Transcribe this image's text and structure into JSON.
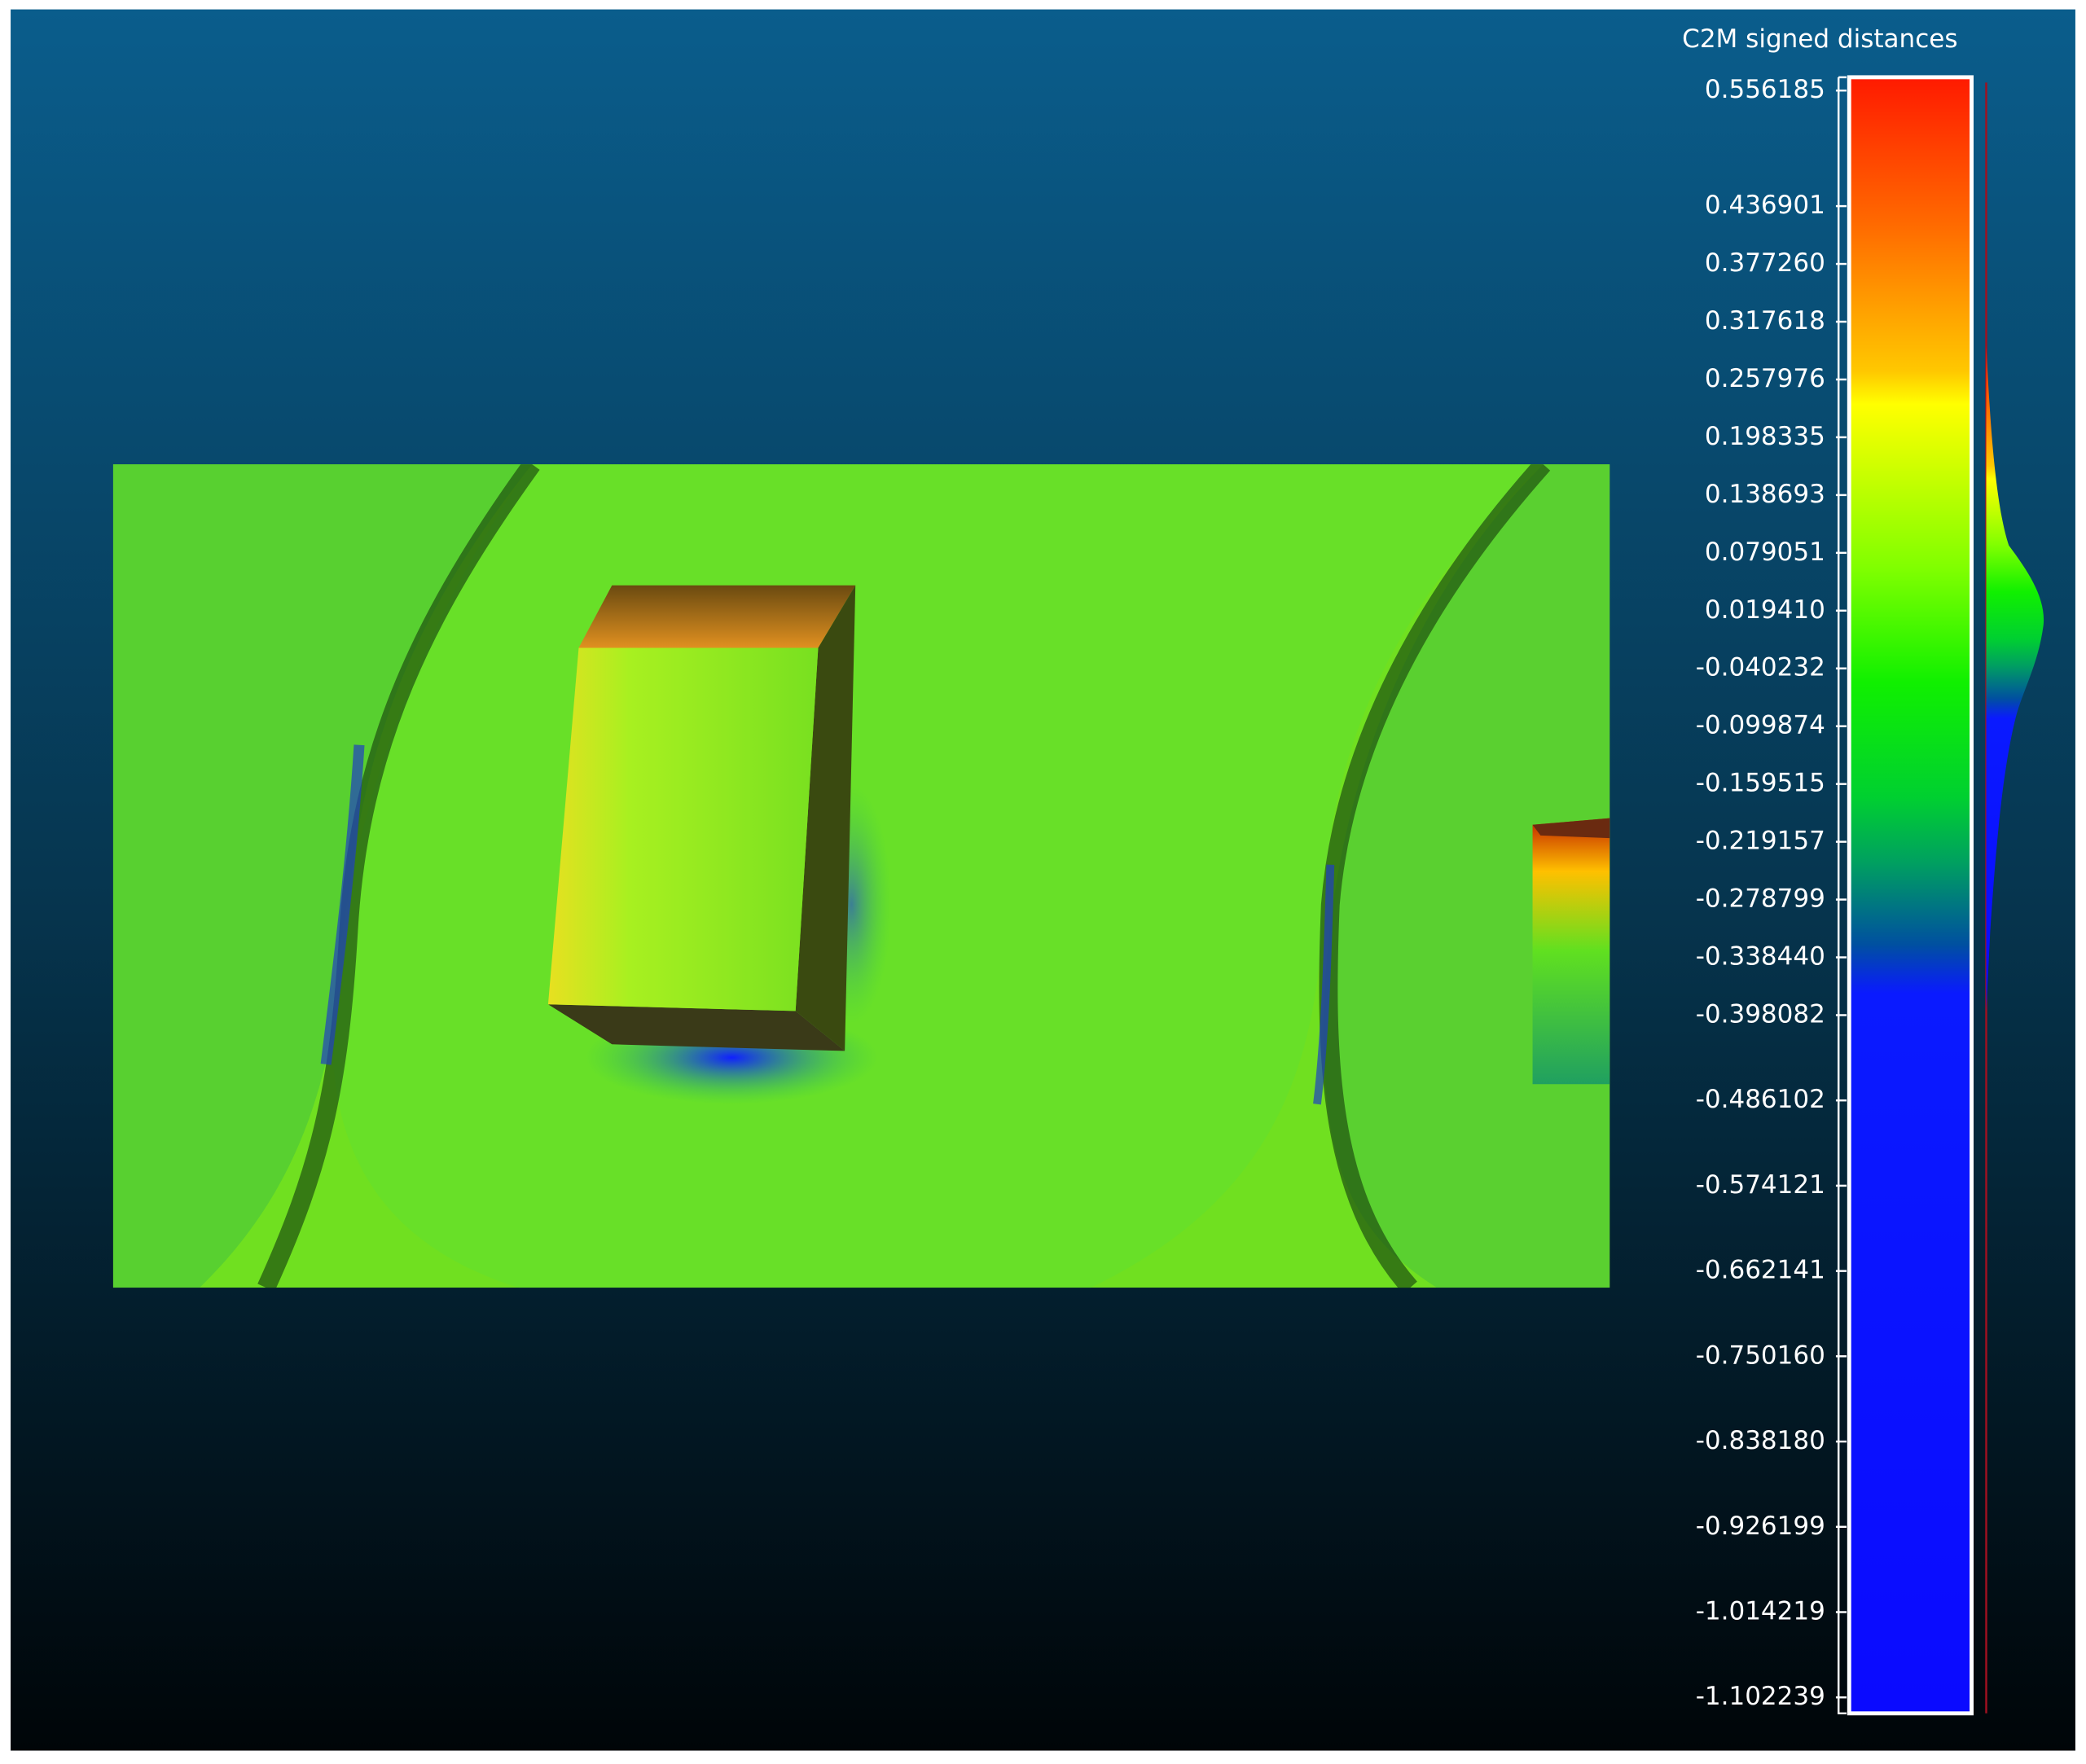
{
  "color_scale": {
    "title": "C2M signed distances",
    "ticks": [
      {
        "value": 0.556185,
        "label": "0.556185"
      },
      {
        "value": 0.436901,
        "label": "0.436901"
      },
      {
        "value": 0.37726,
        "label": "0.377260"
      },
      {
        "value": 0.317618,
        "label": "0.317618"
      },
      {
        "value": 0.257976,
        "label": "0.257976"
      },
      {
        "value": 0.198335,
        "label": "0.198335"
      },
      {
        "value": 0.138693,
        "label": "0.138693"
      },
      {
        "value": 0.079051,
        "label": "0.079051"
      },
      {
        "value": 0.01941,
        "label": "0.019410"
      },
      {
        "value": -0.040232,
        "label": "-0.040232"
      },
      {
        "value": -0.099874,
        "label": "-0.099874"
      },
      {
        "value": -0.159515,
        "label": "-0.159515"
      },
      {
        "value": -0.219157,
        "label": "-0.219157"
      },
      {
        "value": -0.278799,
        "label": "-0.278799"
      },
      {
        "value": -0.33844,
        "label": "-0.338440"
      },
      {
        "value": -0.398082,
        "label": "-0.398082"
      },
      {
        "value": -0.486102,
        "label": "-0.486102"
      },
      {
        "value": -0.574121,
        "label": "-0.574121"
      },
      {
        "value": -0.662141,
        "label": "-0.662141"
      },
      {
        "value": -0.75016,
        "label": "-0.750160"
      },
      {
        "value": -0.83818,
        "label": "-0.838180"
      },
      {
        "value": -0.926199,
        "label": "-0.926199"
      },
      {
        "value": -1.014219,
        "label": "-1.014219"
      },
      {
        "value": -1.102239,
        "label": "-1.102239"
      }
    ]
  }
}
